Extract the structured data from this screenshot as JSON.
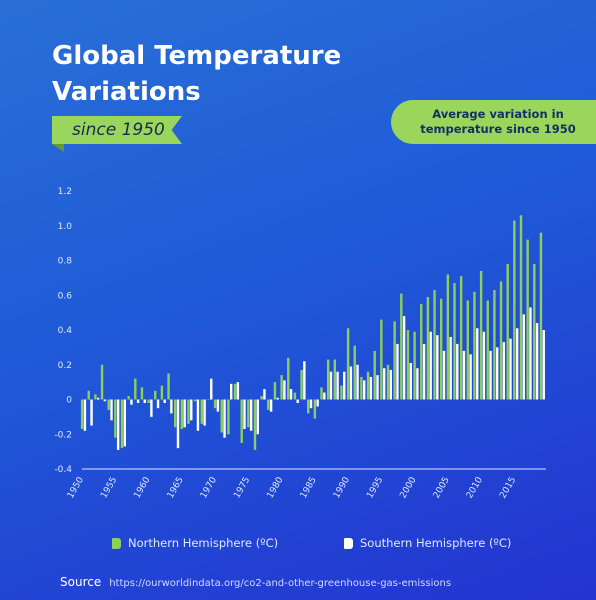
{
  "title": "Global Temperature Variations",
  "subtitle": "since 1950",
  "badge": "Average variation in temperature since 1950",
  "source_label": "Source",
  "source_url": "https://ourworldindata.org/co2-and-other-greenhouse-gas-emissions",
  "colors": {
    "northern": "#8ccf5a",
    "southern": "#ffffff",
    "accent": "#9ad65c"
  },
  "chart_data": {
    "type": "bar",
    "x": [
      1950,
      1951,
      1952,
      1953,
      1954,
      1955,
      1956,
      1957,
      1958,
      1959,
      1960,
      1961,
      1962,
      1963,
      1964,
      1965,
      1966,
      1967,
      1968,
      1969,
      1970,
      1971,
      1972,
      1973,
      1974,
      1975,
      1976,
      1977,
      1978,
      1979,
      1980,
      1981,
      1982,
      1983,
      1984,
      1985,
      1986,
      1987,
      1988,
      1989,
      1990,
      1991,
      1992,
      1993,
      1994,
      1995,
      1996,
      1997,
      1998,
      1999,
      2000,
      2001,
      2002,
      2003,
      2004,
      2005,
      2006,
      2007,
      2008,
      2009,
      2010,
      2011,
      2012,
      2013,
      2014,
      2015,
      2016,
      2017,
      2018,
      2019
    ],
    "xticks": [
      1950,
      1955,
      1960,
      1965,
      1970,
      1975,
      1980,
      1985,
      1990,
      1995,
      2000,
      2005,
      2010,
      2015
    ],
    "ylim": [
      -0.4,
      1.2
    ],
    "yticks": [
      -0.4,
      -0.2,
      0,
      0.2,
      0.4,
      0.6,
      0.8,
      1.0,
      1.2
    ],
    "ytick_labels": [
      "-0.4",
      "-0.2",
      "0",
      "0.2",
      "0.4",
      "0.6",
      "0.8",
      "1.0",
      "1.2"
    ],
    "series": [
      {
        "name": "Northern Hemisphere (ºC)",
        "color": "#8ccf5a",
        "values": [
          -0.17,
          0.05,
          0.03,
          0.2,
          -0.06,
          -0.22,
          -0.28,
          0.02,
          0.12,
          0.07,
          -0.02,
          0.05,
          0.08,
          0.15,
          -0.16,
          -0.17,
          -0.14,
          -0.01,
          -0.14,
          0.0,
          -0.05,
          -0.19,
          -0.2,
          0.09,
          -0.25,
          -0.16,
          -0.29,
          0.02,
          -0.06,
          0.1,
          0.14,
          0.24,
          0.04,
          0.17,
          -0.08,
          -0.11,
          0.07,
          0.23,
          0.23,
          0.08,
          0.41,
          0.31,
          0.13,
          0.16,
          0.28,
          0.46,
          0.2,
          0.45,
          0.61,
          0.4,
          0.39,
          0.55,
          0.59,
          0.63,
          0.58,
          0.72,
          0.67,
          0.71,
          0.57,
          0.62,
          0.74,
          0.57,
          0.63,
          0.68,
          0.78,
          1.03,
          1.06,
          0.92,
          0.78,
          0.96
        ]
      },
      {
        "name": "Southern Hemisphere (ºC)",
        "color": "#ffffff",
        "values": [
          -0.18,
          -0.15,
          0.01,
          -0.01,
          -0.12,
          -0.29,
          -0.27,
          -0.03,
          -0.02,
          -0.02,
          -0.1,
          -0.05,
          -0.02,
          -0.08,
          -0.28,
          -0.16,
          -0.12,
          -0.18,
          -0.15,
          0.12,
          -0.07,
          -0.22,
          0.09,
          0.1,
          -0.17,
          -0.18,
          -0.2,
          0.06,
          -0.07,
          0.01,
          0.11,
          0.06,
          -0.02,
          0.22,
          -0.05,
          -0.04,
          0.04,
          0.16,
          0.16,
          0.16,
          0.19,
          0.2,
          0.11,
          0.13,
          0.14,
          0.18,
          0.17,
          0.32,
          0.48,
          0.21,
          0.18,
          0.32,
          0.39,
          0.37,
          0.28,
          0.36,
          0.32,
          0.28,
          0.26,
          0.41,
          0.39,
          0.28,
          0.3,
          0.33,
          0.35,
          0.41,
          0.49,
          0.53,
          0.44,
          0.4
        ]
      }
    ]
  }
}
